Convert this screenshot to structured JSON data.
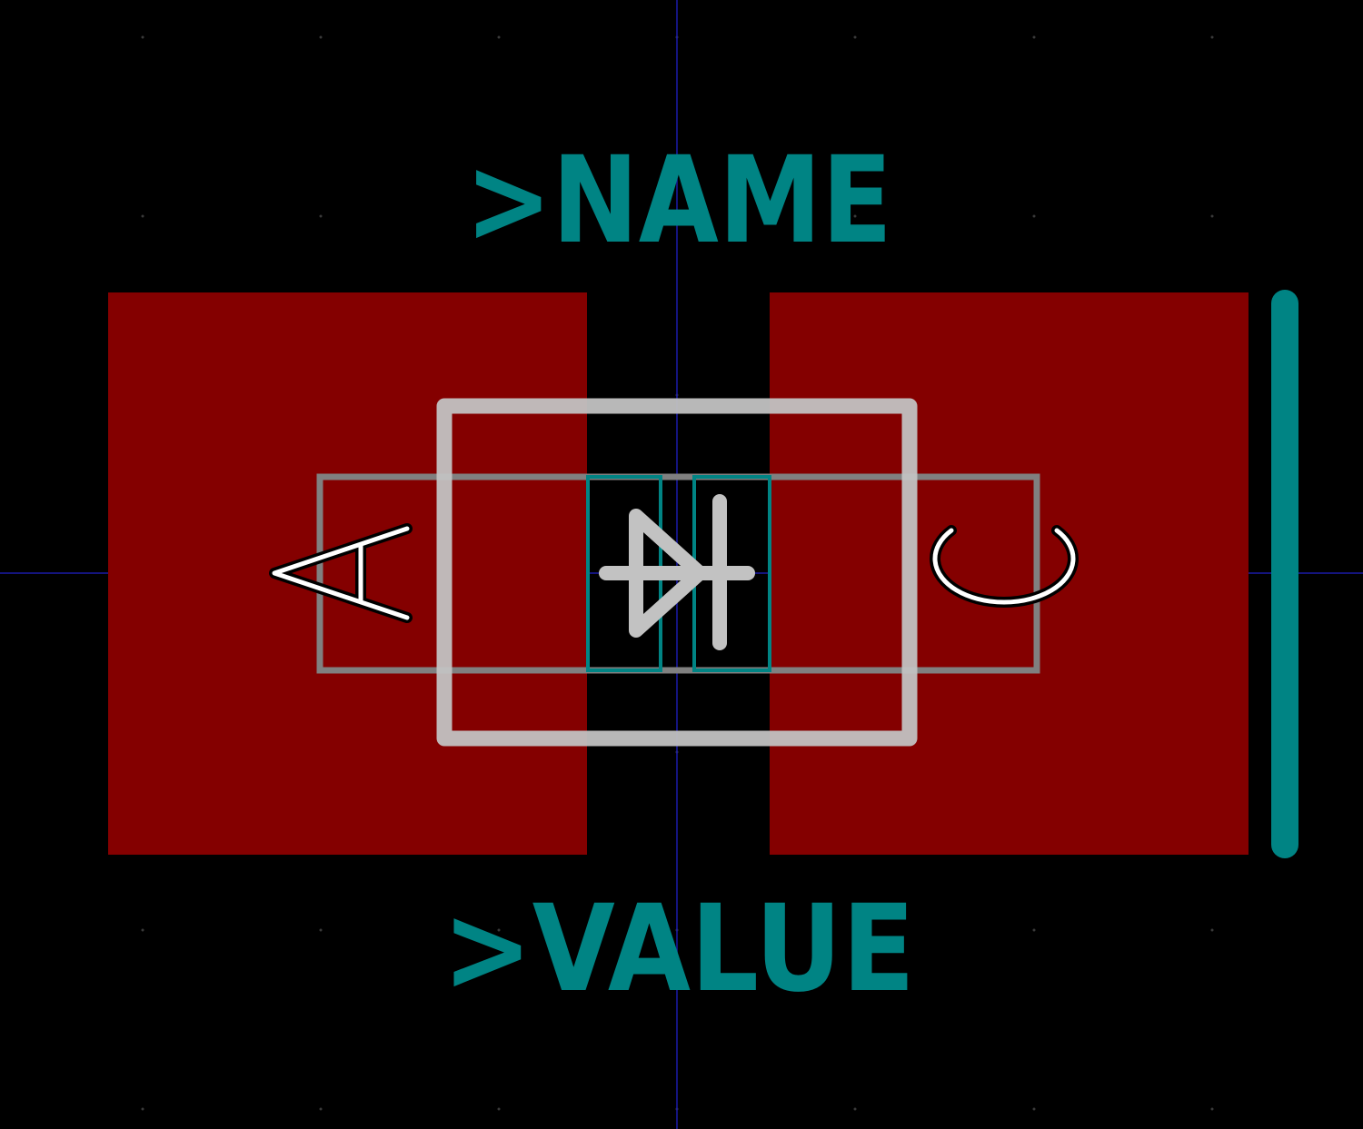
{
  "labels": {
    "name_ref": ">NAME",
    "value_ref": ">VALUE"
  },
  "pads": [
    {
      "id": "anode"
    },
    {
      "id": "cathode"
    }
  ],
  "colors": {
    "background": "#000000",
    "copper_pad": "#840000",
    "silkscreen": "#008484",
    "fab_outline": "#c2c2c2",
    "courtyard": "#808080",
    "pin_marker": "#ffffff",
    "axis": "#1a1aa8",
    "grid_dot": "#3a3a3a"
  },
  "icons": [
    "diode-symbol-icon",
    "anode-marker-icon",
    "cathode-marker-icon"
  ]
}
